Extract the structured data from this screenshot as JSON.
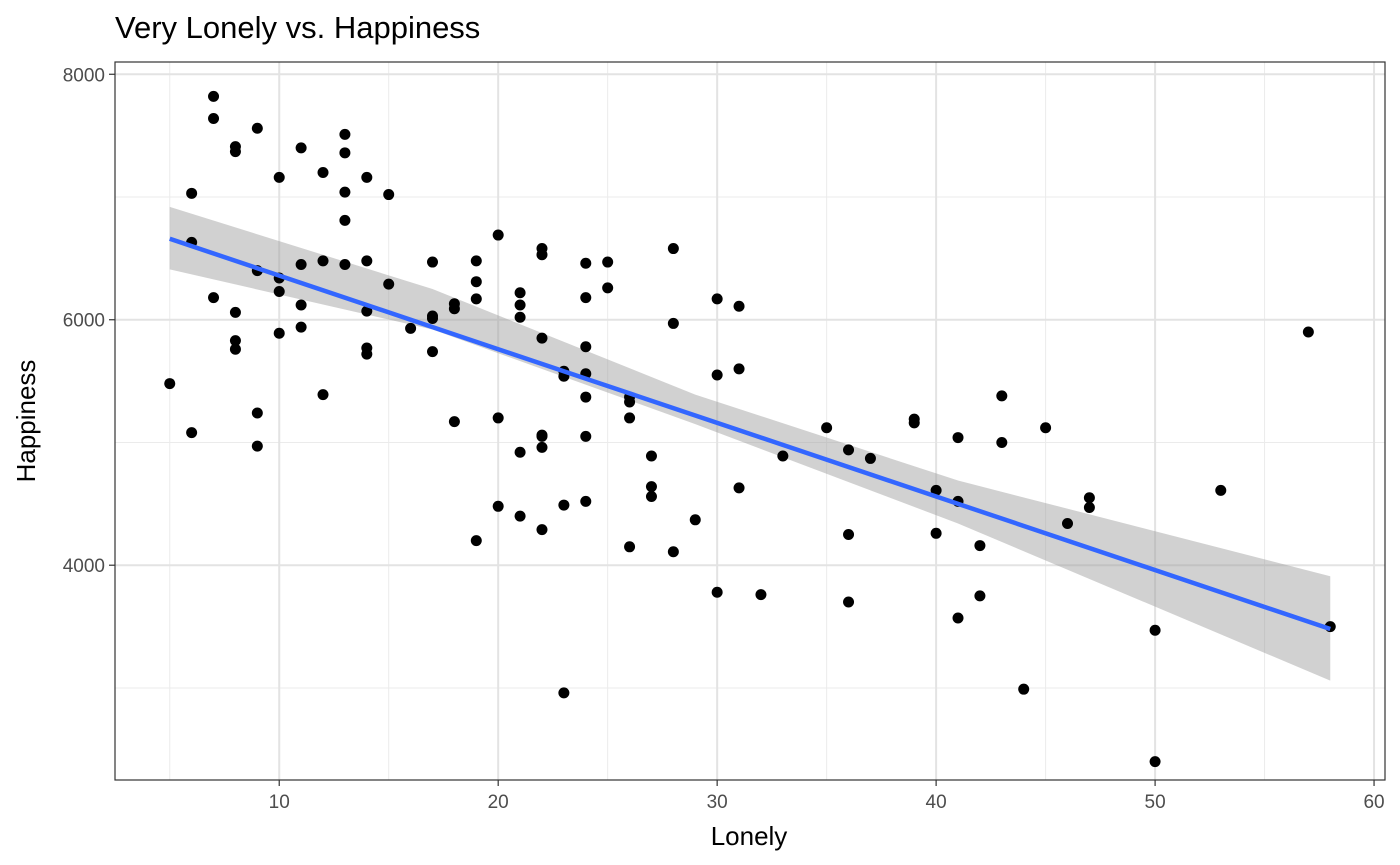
{
  "chart_data": {
    "type": "scatter",
    "title": "Very Lonely vs. Happiness",
    "xlabel": "Lonely",
    "ylabel": "Happiness",
    "xlim": [
      2.5,
      60.5
    ],
    "ylim": [
      2250,
      8100
    ],
    "x_ticks": [
      10,
      20,
      30,
      40,
      50,
      60
    ],
    "x_tick_labels": [
      "10",
      "20",
      "30",
      "40",
      "50",
      "60"
    ],
    "y_ticks": [
      4000,
      6000,
      8000
    ],
    "y_tick_labels": [
      "4000",
      "6000",
      "8000"
    ],
    "grid": true,
    "colors": {
      "points": "#000000",
      "trend_line": "#3366ff",
      "confidence_band": "#999999"
    },
    "points": [
      [
        5,
        5480
      ],
      [
        6,
        7030
      ],
      [
        6,
        6630
      ],
      [
        6,
        5080
      ],
      [
        7,
        7820
      ],
      [
        7,
        7640
      ],
      [
        7,
        6180
      ],
      [
        8,
        7410
      ],
      [
        8,
        7370
      ],
      [
        8,
        6060
      ],
      [
        8,
        5830
      ],
      [
        8,
        5760
      ],
      [
        9,
        7560
      ],
      [
        9,
        6400
      ],
      [
        9,
        5240
      ],
      [
        9,
        4970
      ],
      [
        10,
        7160
      ],
      [
        10,
        6340
      ],
      [
        10,
        6230
      ],
      [
        10,
        5890
      ],
      [
        11,
        7400
      ],
      [
        11,
        6450
      ],
      [
        11,
        6120
      ],
      [
        11,
        5940
      ],
      [
        12,
        7200
      ],
      [
        12,
        6480
      ],
      [
        12,
        5390
      ],
      [
        13,
        7510
      ],
      [
        13,
        7360
      ],
      [
        13,
        7040
      ],
      [
        13,
        6810
      ],
      [
        13,
        6450
      ],
      [
        14,
        7160
      ],
      [
        14,
        6480
      ],
      [
        14,
        6070
      ],
      [
        14,
        5770
      ],
      [
        14,
        5720
      ],
      [
        15,
        7020
      ],
      [
        15,
        6290
      ],
      [
        16,
        5930
      ],
      [
        17,
        6470
      ],
      [
        17,
        6030
      ],
      [
        17,
        6010
      ],
      [
        17,
        5740
      ],
      [
        18,
        6130
      ],
      [
        18,
        6090
      ],
      [
        18,
        5170
      ],
      [
        19,
        6480
      ],
      [
        19,
        6310
      ],
      [
        19,
        6170
      ],
      [
        19,
        4200
      ],
      [
        20,
        6690
      ],
      [
        20,
        5200
      ],
      [
        20,
        4480
      ],
      [
        21,
        6220
      ],
      [
        21,
        6120
      ],
      [
        21,
        6020
      ],
      [
        21,
        4920
      ],
      [
        21,
        4400
      ],
      [
        22,
        6580
      ],
      [
        22,
        6530
      ],
      [
        22,
        5850
      ],
      [
        22,
        5060
      ],
      [
        22,
        5050
      ],
      [
        22,
        4960
      ],
      [
        22,
        4290
      ],
      [
        23,
        5580
      ],
      [
        23,
        5540
      ],
      [
        23,
        4490
      ],
      [
        23,
        2960
      ],
      [
        24,
        6460
      ],
      [
        24,
        6180
      ],
      [
        24,
        5780
      ],
      [
        24,
        5560
      ],
      [
        24,
        5370
      ],
      [
        24,
        5050
      ],
      [
        24,
        4520
      ],
      [
        25,
        6470
      ],
      [
        25,
        6260
      ],
      [
        26,
        5370
      ],
      [
        26,
        5330
      ],
      [
        26,
        5200
      ],
      [
        26,
        4150
      ],
      [
        27,
        4890
      ],
      [
        27,
        4640
      ],
      [
        27,
        4560
      ],
      [
        28,
        6580
      ],
      [
        28,
        5970
      ],
      [
        28,
        4110
      ],
      [
        29,
        4370
      ],
      [
        30,
        6170
      ],
      [
        30,
        5550
      ],
      [
        30,
        3780
      ],
      [
        31,
        6110
      ],
      [
        31,
        5600
      ],
      [
        31,
        4630
      ],
      [
        32,
        3760
      ],
      [
        33,
        4890
      ],
      [
        35,
        5120
      ],
      [
        36,
        4940
      ],
      [
        36,
        4250
      ],
      [
        36,
        3700
      ],
      [
        37,
        4870
      ],
      [
        39,
        5190
      ],
      [
        39,
        5160
      ],
      [
        40,
        4610
      ],
      [
        40,
        4260
      ],
      [
        41,
        5040
      ],
      [
        41,
        4520
      ],
      [
        41,
        3570
      ],
      [
        42,
        4160
      ],
      [
        42,
        3750
      ],
      [
        43,
        5380
      ],
      [
        43,
        5000
      ],
      [
        44,
        2990
      ],
      [
        45,
        5120
      ],
      [
        46,
        4340
      ],
      [
        47,
        4550
      ],
      [
        47,
        4470
      ],
      [
        50,
        3470
      ],
      [
        50,
        2400
      ],
      [
        53,
        4610
      ],
      [
        57,
        5900
      ],
      [
        58,
        3500
      ]
    ],
    "trend_line": {
      "x": [
        5,
        58
      ],
      "y": [
        6660,
        3480
      ]
    },
    "confidence_band": {
      "x": [
        5,
        17,
        29,
        41,
        58
      ],
      "lower": [
        6410,
        5920,
        5150,
        4340,
        3060
      ],
      "upper": [
        6920,
        6250,
        5390,
        4690,
        3910
      ]
    }
  }
}
